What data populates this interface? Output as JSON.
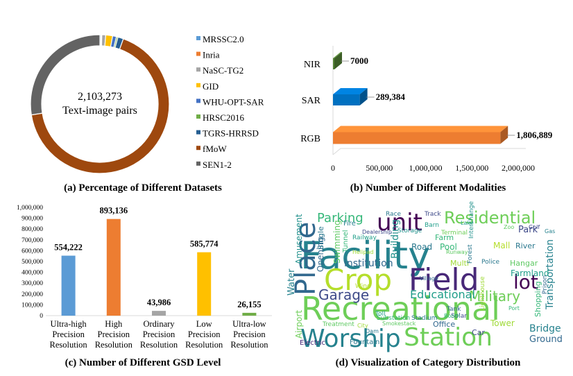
{
  "colors": {
    "blue": "#5b9bd5",
    "orange": "#ed7d31",
    "gray": "#a5a5a5",
    "gold": "#ffc000",
    "steel": "#4472c4",
    "green": "#70ad47",
    "darkblue": "#255e91",
    "brown": "#9e480e",
    "darkgray": "#636363",
    "rgb": "#ed7d31",
    "sar": "#0070c0",
    "nir": "#548235"
  },
  "chart_data": [
    {
      "type": "pie",
      "variant": "donut",
      "title": "(a) Percentage of Different Datasets",
      "center_text": [
        "2,103,273",
        "Text-image pairs"
      ],
      "legend_position": "right",
      "labels": [
        "MRSSC2.0",
        "Inria",
        "NaSC-TG2",
        "GID",
        "WHU-OPT-SAR",
        "HRSC2016",
        "TGRS-HRRSD",
        "fMoW",
        "SEN1-2"
      ],
      "values": [
        0.25,
        0.2,
        0.9,
        1.6,
        0.9,
        0.35,
        1.3,
        67.0,
        27.5
      ],
      "colors": [
        "#5b9bd5",
        "#ed7d31",
        "#a5a5a5",
        "#ffc000",
        "#4472c4",
        "#70ad47",
        "#255e91",
        "#9e480e",
        "#636363"
      ]
    },
    {
      "type": "bar",
      "orientation": "horizontal",
      "title": "(b) Number of Different Modalities",
      "categories": [
        "NIR",
        "SAR",
        "RGB"
      ],
      "values": [
        7000,
        289384,
        1806889
      ],
      "value_labels": [
        "7000",
        "289,384",
        "1,806,889"
      ],
      "colors": [
        "#548235",
        "#0070c0",
        "#ed7d31"
      ],
      "xlim": [
        0,
        2000000
      ],
      "xticks": [
        "0",
        "500,000",
        "1,000,000",
        "1,500,000",
        "2,000,000"
      ]
    },
    {
      "type": "bar",
      "title": "(c) Number of Different GSD Level",
      "categories": [
        [
          "Ultra-high",
          "Precision",
          "Resolution"
        ],
        [
          "High",
          "Precision",
          "Resolution"
        ],
        [
          "Ordinary",
          "Precision",
          "Resolution"
        ],
        [
          "Low",
          "Precision",
          "Resolution"
        ],
        [
          "Ultra-low",
          "Precision",
          "Resolution"
        ]
      ],
      "values": [
        554222,
        893136,
        43986,
        585774,
        26155
      ],
      "value_labels": [
        "554,222",
        "893,136",
        "43,986",
        "585,774",
        "26,155"
      ],
      "colors": [
        "#5b9bd5",
        "#ed7d31",
        "#a5a5a5",
        "#ffc000",
        "#70ad47"
      ],
      "ylim": [
        0,
        1000000
      ],
      "yticks": [
        "0",
        "100,000",
        "200,000",
        "300,000",
        "400,000",
        "500,000",
        "600,000",
        "700,000",
        "800,000",
        "900,000",
        "1,000,000"
      ]
    },
    {
      "type": "wordcloud",
      "title": "(d) Visualization of Category Distribution",
      "words": [
        "Facility",
        "Recreational",
        "Crop",
        "Field",
        "Station",
        "Worship",
        "Place",
        "unit",
        "Residential",
        "Parking",
        "Garage",
        "Military",
        "lot",
        "institution",
        "Educational",
        "Transportation",
        "Farmland",
        "Park",
        "Road",
        "Pool",
        "Mall",
        "Amusement",
        "Airport",
        "Water",
        "Bridge",
        "Ground",
        "Shopping",
        "River",
        "Hangar",
        "Tower",
        "Car",
        "Office",
        "Electric",
        "Fountain",
        "Treatment",
        "Multi",
        "Police",
        "Farm",
        "Building",
        "Swimming",
        "Opening",
        "Single",
        "Tunnel",
        "Fire",
        "Race",
        "Track",
        "Barn",
        "Dealership",
        "Storage",
        "Railway",
        "Helipad",
        "Village",
        "Solar",
        "Toll",
        "Smokestack",
        "Substation",
        "Stadium",
        "Tank",
        "Booth",
        "Lighthouse",
        "Forest",
        "Interchange",
        "Terminal",
        "Runway",
        "Wind",
        "Prison",
        "Gas",
        "Golf",
        "Zoo",
        "Lake",
        "Dam",
        "Port",
        "City"
      ]
    }
  ]
}
